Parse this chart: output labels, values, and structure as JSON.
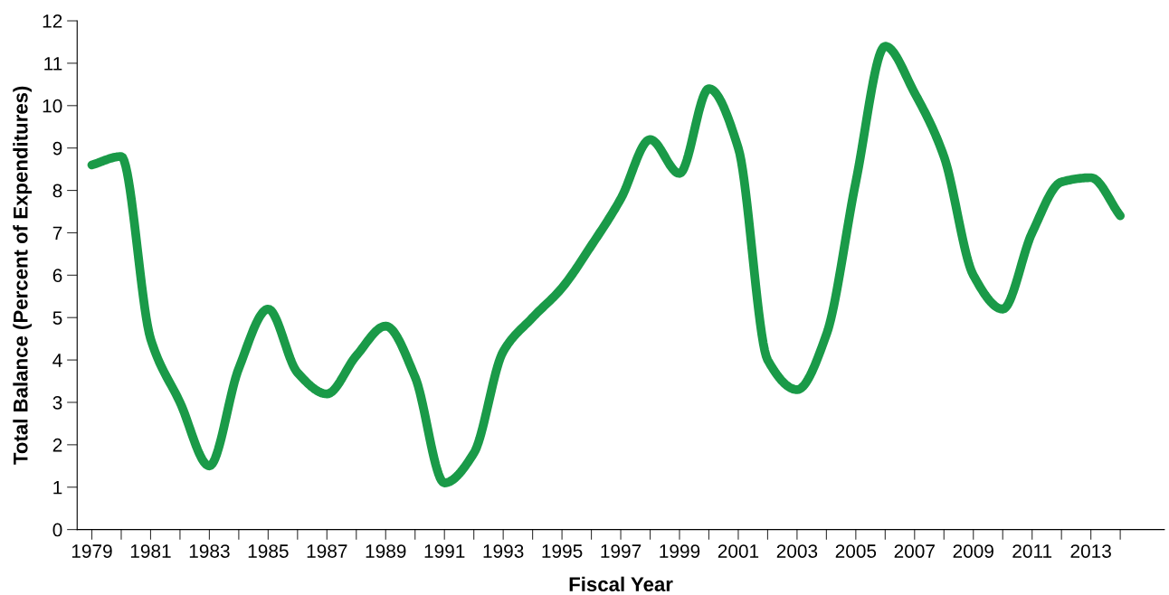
{
  "chart_data": {
    "type": "line",
    "xlabel": "Fiscal Year",
    "ylabel": "Total Balance (Percent of Expenditures)",
    "x": [
      1979,
      1980,
      1981,
      1982,
      1983,
      1984,
      1985,
      1986,
      1987,
      1988,
      1989,
      1990,
      1991,
      1992,
      1993,
      1994,
      1995,
      1996,
      1997,
      1998,
      1999,
      2000,
      2001,
      2002,
      2003,
      2004,
      2005,
      2006,
      2007,
      2008,
      2009,
      2010,
      2011,
      2012,
      2013,
      2014
    ],
    "series": [
      {
        "color": "#1a9a48",
        "values": [
          8.6,
          8.8,
          4.5,
          3.0,
          1.5,
          3.8,
          5.2,
          3.7,
          3.2,
          4.1,
          4.8,
          3.6,
          1.1,
          1.8,
          4.2,
          5.0,
          5.7,
          6.7,
          7.8,
          9.2,
          8.4,
          10.4,
          9.0,
          4.0,
          3.3,
          4.6,
          8.2,
          11.4,
          10.3,
          8.8,
          6.0,
          5.2,
          7.0,
          8.2,
          8.3,
          7.4
        ]
      }
    ],
    "xlim": [
      1978.5,
      2015.5
    ],
    "xticks": [
      1979,
      {
        "value": 1980,
        "label": null
      },
      1981,
      {
        "value": 1982,
        "label": null
      },
      1983,
      {
        "value": 1984,
        "label": null
      },
      1985,
      {
        "value": 1986,
        "label": null
      },
      1987,
      {
        "value": 1988,
        "label": null
      },
      1989,
      {
        "value": 1990,
        "label": null
      },
      1991,
      {
        "value": 1992,
        "label": null
      },
      1993,
      {
        "value": 1994,
        "label": null
      },
      1995,
      {
        "value": 1996,
        "label": null
      },
      1997,
      {
        "value": 1998,
        "label": null
      },
      1999,
      {
        "value": 2000,
        "label": null
      },
      2001,
      {
        "value": 2002,
        "label": null
      },
      2003,
      {
        "value": 2004,
        "label": null
      },
      2005,
      {
        "value": 2006,
        "label": null
      },
      2007,
      {
        "value": 2008,
        "label": null
      },
      2009,
      {
        "value": 2010,
        "label": null
      },
      2011,
      {
        "value": 2012,
        "label": null
      },
      2013,
      {
        "value": 2014,
        "label": null
      }
    ],
    "ylim": [
      0,
      12
    ],
    "yticks": [
      0,
      1,
      2,
      3,
      4,
      5,
      6,
      7,
      8,
      9,
      10,
      11,
      12
    ],
    "grid": false,
    "legend": false,
    "marker": "none",
    "line_style": "solid"
  }
}
